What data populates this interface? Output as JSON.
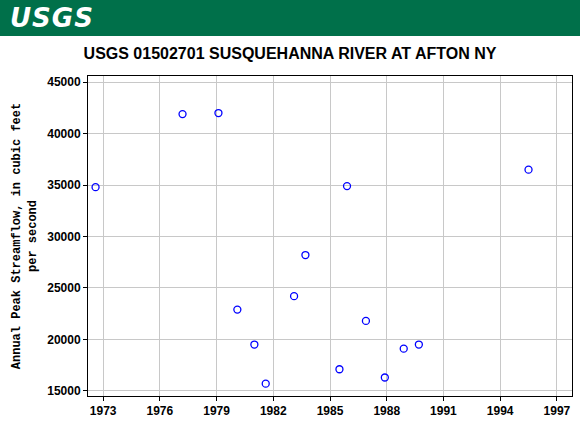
{
  "header": {
    "logo": "USGS"
  },
  "chart_data": {
    "type": "scatter",
    "title": "USGS 01502701 SUSQUEHANNA RIVER AT AFTON NY",
    "y_label": "Annual Peak Streamflow, in cubic feet per second",
    "x": [
      1972.6,
      1977.2,
      1979.1,
      1980.1,
      1981.0,
      1981.6,
      1983.1,
      1983.7,
      1985.5,
      1985.9,
      1986.9,
      1987.9,
      1988.9,
      1989.7,
      1995.5
    ],
    "values": [
      34800,
      41900,
      42000,
      22900,
      19500,
      15700,
      24200,
      28200,
      17100,
      34900,
      21800,
      16300,
      19100,
      19500,
      36500
    ],
    "color": "#0000ff",
    "marker": "open circle",
    "xlim": [
      1972.2,
      1997.8
    ],
    "xticks": [
      1973,
      1976,
      1979,
      1982,
      1985,
      1988,
      1991,
      1994,
      1997
    ],
    "ylim": [
      14500,
      45600
    ],
    "yticks": [
      15000,
      20000,
      25000,
      30000,
      35000,
      40000,
      45000
    ],
    "grid": true
  }
}
